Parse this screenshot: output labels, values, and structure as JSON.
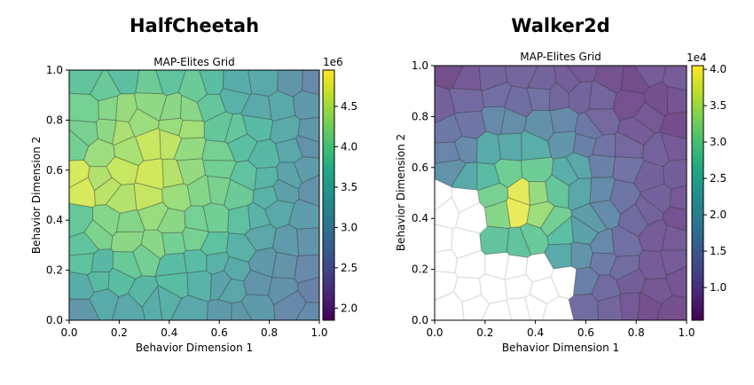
{
  "chart_data": [
    {
      "type": "heatmap",
      "suptitle": "HalfCheetah",
      "title": "MAP-Elites Grid",
      "xlabel": "Behavior Dimension 1",
      "ylabel": "Behavior Dimension 2",
      "xlim": [
        0,
        1
      ],
      "ylim": [
        0,
        1
      ],
      "xticks": [
        "0.0",
        "0.2",
        "0.4",
        "0.6",
        "0.8",
        "1.0"
      ],
      "yticks": [
        "0.0",
        "0.2",
        "0.4",
        "0.6",
        "0.8",
        "1.0"
      ],
      "colormap": "viridis",
      "colorbar": {
        "min": 1.85,
        "max": 4.95,
        "multiplier": "1e6",
        "ticks": [
          "2.0",
          "2.5",
          "3.0",
          "3.5",
          "4.0",
          "4.5"
        ],
        "tick_values": [
          2.0,
          2.5,
          3.0,
          3.5,
          4.0,
          4.5
        ]
      },
      "alpha": 0.75,
      "empty_region": [],
      "peaks": [
        {
          "x": 0.03,
          "y": 0.6,
          "value": 4.9,
          "spread": 0.09
        }
      ],
      "value_model": {
        "base": 2.6,
        "amplitude": 2.0,
        "center": [
          0.3,
          0.6
        ],
        "falloff": 0.55,
        "min": 2.0,
        "max": 4.7
      }
    },
    {
      "type": "heatmap",
      "suptitle": "Walker2d",
      "title": "MAP-Elites Grid",
      "xlabel": "Behavior Dimension 1",
      "ylabel": "Behavior Dimension 2",
      "xlim": [
        0,
        1
      ],
      "ylim": [
        0,
        1
      ],
      "xticks": [
        "0.0",
        "0.2",
        "0.4",
        "0.6",
        "0.8",
        "1.0"
      ],
      "yticks": [
        "0.0",
        "0.2",
        "0.4",
        "0.6",
        "0.8",
        "1.0"
      ],
      "colormap": "viridis",
      "colorbar": {
        "min": 0.55,
        "max": 4.05,
        "multiplier": "1e4",
        "ticks": [
          "1.0",
          "1.5",
          "2.0",
          "2.5",
          "3.0",
          "3.5",
          "4.0"
        ],
        "tick_values": [
          1.0,
          1.5,
          2.0,
          2.5,
          3.0,
          3.5,
          4.0
        ]
      },
      "alpha": 0.75,
      "empty_region": [
        [
          0.0,
          0.55
        ],
        [
          0.18,
          0.5
        ],
        [
          0.22,
          0.32
        ],
        [
          0.35,
          0.22
        ],
        [
          0.55,
          0.2
        ],
        [
          0.6,
          0.0
        ],
        [
          0.0,
          0.0
        ]
      ],
      "peaks": [
        {
          "x": 0.35,
          "y": 0.43,
          "value": 4.0,
          "spread": 0.07
        }
      ],
      "value_model": {
        "base": 0.8,
        "amplitude": 2.6,
        "center": [
          0.35,
          0.45
        ],
        "falloff": 0.32,
        "min": 0.7,
        "max": 3.9
      }
    }
  ]
}
